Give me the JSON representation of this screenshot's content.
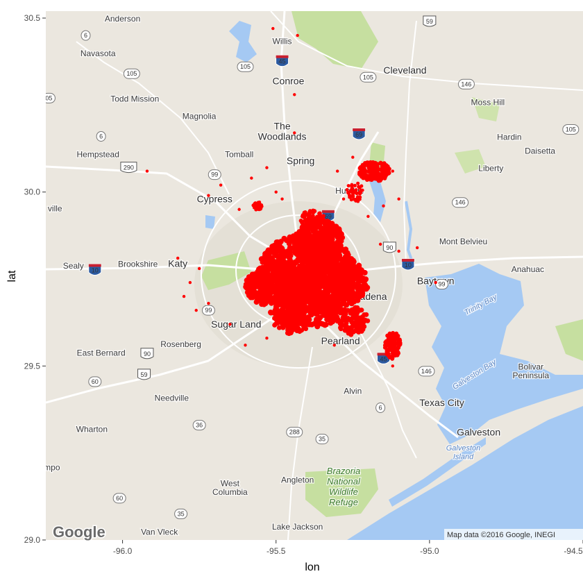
{
  "map": {
    "xlabel": "lon",
    "ylabel": "lat",
    "x_ticks": [
      {
        "value": -96.0,
        "label": "-96.0"
      },
      {
        "value": -95.5,
        "label": "-95.5"
      },
      {
        "value": -95.0,
        "label": "-95.0"
      },
      {
        "value": -94.5,
        "label": "-94.5"
      }
    ],
    "y_ticks": [
      {
        "value": 29.0,
        "label": "29.0"
      },
      {
        "value": 29.5,
        "label": "29.5"
      },
      {
        "value": 30.0,
        "label": "30.0"
      },
      {
        "value": 30.5,
        "label": "30.5"
      }
    ],
    "xlim": [
      -96.25,
      -94.5
    ],
    "ylim": [
      29.0,
      30.52
    ],
    "attribution": "Map data ©2016 Google, INEGI",
    "logo": "Google",
    "point_color": "#ff0000",
    "land_color": "#ebe7df",
    "water_color": "#a5c9f3",
    "park_color": "#c6dfa0",
    "places": [
      {
        "name": "Anderson",
        "lon": -96.0,
        "lat": 30.49,
        "style": "place"
      },
      {
        "name": "Willis",
        "lon": -95.48,
        "lat": 30.425,
        "style": "place"
      },
      {
        "name": "Navasota",
        "lon": -96.08,
        "lat": 30.39,
        "style": "place"
      },
      {
        "name": "Cleveland",
        "lon": -95.08,
        "lat": 30.34,
        "style": "place-big"
      },
      {
        "name": "Conroe",
        "lon": -95.46,
        "lat": 30.31,
        "style": "place-big"
      },
      {
        "name": "Todd Mission",
        "lon": -95.96,
        "lat": 30.26,
        "style": "place"
      },
      {
        "name": "Moss Hill",
        "lon": -94.81,
        "lat": 30.25,
        "style": "place"
      },
      {
        "name": "Magnolia",
        "lon": -95.75,
        "lat": 30.21,
        "style": "place"
      },
      {
        "name": "The",
        "lon": -95.48,
        "lat": 30.18,
        "style": "place-big"
      },
      {
        "name": "Woodlands",
        "lon": -95.48,
        "lat": 30.15,
        "style": "place-big"
      },
      {
        "name": "Hardin",
        "lon": -94.74,
        "lat": 30.15,
        "style": "place"
      },
      {
        "name": "Daisetta",
        "lon": -94.64,
        "lat": 30.11,
        "style": "place"
      },
      {
        "name": "Hempstead",
        "lon": -96.08,
        "lat": 30.1,
        "style": "place"
      },
      {
        "name": "Tomball",
        "lon": -95.62,
        "lat": 30.1,
        "style": "place"
      },
      {
        "name": "Spring",
        "lon": -95.42,
        "lat": 30.08,
        "style": "place-big"
      },
      {
        "name": "Liberty",
        "lon": -94.8,
        "lat": 30.06,
        "style": "place"
      },
      {
        "name": "Humble",
        "lon": -95.26,
        "lat": 29.995,
        "style": "place"
      },
      {
        "name": "Cypress",
        "lon": -95.7,
        "lat": 29.97,
        "style": "place-big"
      },
      {
        "name": "Mont Belvieu",
        "lon": -94.89,
        "lat": 29.85,
        "style": "place"
      },
      {
        "name": "Sealy",
        "lon": -96.16,
        "lat": 29.78,
        "style": "place"
      },
      {
        "name": "Brookshire",
        "lon": -95.95,
        "lat": 29.785,
        "style": "place"
      },
      {
        "name": "Katy",
        "lon": -95.82,
        "lat": 29.785,
        "style": "place-big"
      },
      {
        "name": "Anahuac",
        "lon": -94.68,
        "lat": 29.77,
        "style": "place"
      },
      {
        "name": "Baytown",
        "lon": -94.98,
        "lat": 29.735,
        "style": "place-big"
      },
      {
        "name": "Trinity Bay",
        "lon": -94.83,
        "lat": 29.67,
        "style": "place-water"
      },
      {
        "name": "Pasadena",
        "lon": -95.21,
        "lat": 29.69,
        "style": "place-big"
      },
      {
        "name": "Sugar Land",
        "lon": -95.63,
        "lat": 29.61,
        "style": "place-big"
      },
      {
        "name": "Rosenberg",
        "lon": -95.81,
        "lat": 29.555,
        "style": "place"
      },
      {
        "name": "Pearland",
        "lon": -95.29,
        "lat": 29.563,
        "style": "place-big"
      },
      {
        "name": "East Bernard",
        "lon": -96.07,
        "lat": 29.53,
        "style": "place"
      },
      {
        "name": "Galveston Bay",
        "lon": -94.85,
        "lat": 29.47,
        "style": "place-water"
      },
      {
        "name": "Bolivar",
        "lon": -94.67,
        "lat": 29.49,
        "style": "place"
      },
      {
        "name": "Peninsula",
        "lon": -94.67,
        "lat": 29.465,
        "style": "place"
      },
      {
        "name": "Alvin",
        "lon": -95.25,
        "lat": 29.42,
        "style": "place"
      },
      {
        "name": "Needville",
        "lon": -95.84,
        "lat": 29.4,
        "style": "place"
      },
      {
        "name": "Texas City",
        "lon": -94.96,
        "lat": 29.385,
        "style": "place-big"
      },
      {
        "name": "Wharton",
        "lon": -96.1,
        "lat": 29.31,
        "style": "place"
      },
      {
        "name": "Galveston",
        "lon": -94.84,
        "lat": 29.3,
        "style": "place-big"
      },
      {
        "name": "Galveston",
        "lon": -94.89,
        "lat": 29.257,
        "style": "place-water"
      },
      {
        "name": "Island",
        "lon": -94.89,
        "lat": 29.232,
        "style": "place-water"
      },
      {
        "name": "mpo",
        "lon": -96.23,
        "lat": 29.2,
        "style": "place"
      },
      {
        "name": "Brazoria",
        "lon": -95.28,
        "lat": 29.19,
        "style": "place-park"
      },
      {
        "name": "Angleton",
        "lon": -95.43,
        "lat": 29.165,
        "style": "place"
      },
      {
        "name": "National",
        "lon": -95.28,
        "lat": 29.16,
        "style": "place-park"
      },
      {
        "name": "West",
        "lon": -95.65,
        "lat": 29.155,
        "style": "place"
      },
      {
        "name": "Columbia",
        "lon": -95.65,
        "lat": 29.13,
        "style": "place"
      },
      {
        "name": "Wildlife",
        "lon": -95.28,
        "lat": 29.13,
        "style": "place-park"
      },
      {
        "name": "Refuge",
        "lon": -95.28,
        "lat": 29.1,
        "style": "place-park"
      },
      {
        "name": "Lake Jackson",
        "lon": -95.43,
        "lat": 29.03,
        "style": "place"
      },
      {
        "name": "Van Vleck",
        "lon": -95.88,
        "lat": 29.015,
        "style": "place"
      },
      {
        "name": "ville",
        "lon": -96.22,
        "lat": 29.945,
        "style": "place"
      }
    ],
    "shields": [
      {
        "label": "6",
        "lon": -96.12,
        "lat": 30.45,
        "shape": "oval"
      },
      {
        "label": "59",
        "lon": -95.0,
        "lat": 30.49,
        "shape": "us"
      },
      {
        "label": "45",
        "lon": -95.48,
        "lat": 30.375,
        "shape": "interstate"
      },
      {
        "label": "105",
        "lon": -95.97,
        "lat": 30.34,
        "shape": "oval"
      },
      {
        "label": "105",
        "lon": -95.6,
        "lat": 30.36,
        "shape": "oval"
      },
      {
        "label": "105",
        "lon": -95.2,
        "lat": 30.33,
        "shape": "oval"
      },
      {
        "label": "146",
        "lon": -94.88,
        "lat": 30.31,
        "shape": "oval"
      },
      {
        "label": "05",
        "lon": -96.24,
        "lat": 30.27,
        "shape": "oval"
      },
      {
        "label": "69",
        "lon": -95.23,
        "lat": 30.165,
        "shape": "interstate"
      },
      {
        "label": "6",
        "lon": -96.07,
        "lat": 30.16,
        "shape": "oval"
      },
      {
        "label": "105",
        "lon": -94.54,
        "lat": 30.18,
        "shape": "oval"
      },
      {
        "label": "290",
        "lon": -95.98,
        "lat": 30.07,
        "shape": "us"
      },
      {
        "label": "99",
        "lon": -95.7,
        "lat": 30.05,
        "shape": "oval"
      },
      {
        "label": "146",
        "lon": -94.9,
        "lat": 29.97,
        "shape": "oval"
      },
      {
        "label": "69",
        "lon": -95.33,
        "lat": 29.93,
        "shape": "interstate"
      },
      {
        "label": "90",
        "lon": -95.13,
        "lat": 29.84,
        "shape": "us"
      },
      {
        "label": "10",
        "lon": -96.09,
        "lat": 29.775,
        "shape": "interstate"
      },
      {
        "label": "10",
        "lon": -95.07,
        "lat": 29.79,
        "shape": "interstate"
      },
      {
        "label": "99",
        "lon": -94.96,
        "lat": 29.735,
        "shape": "oval"
      },
      {
        "label": "99",
        "lon": -95.72,
        "lat": 29.66,
        "shape": "oval"
      },
      {
        "label": "90",
        "lon": -95.92,
        "lat": 29.535,
        "shape": "us"
      },
      {
        "label": "45",
        "lon": -95.15,
        "lat": 29.52,
        "shape": "interstate"
      },
      {
        "label": "146",
        "lon": -95.01,
        "lat": 29.485,
        "shape": "oval"
      },
      {
        "label": "59",
        "lon": -95.93,
        "lat": 29.475,
        "shape": "us"
      },
      {
        "label": "60",
        "lon": -96.09,
        "lat": 29.455,
        "shape": "oval"
      },
      {
        "label": "6",
        "lon": -95.16,
        "lat": 29.38,
        "shape": "oval"
      },
      {
        "label": "36",
        "lon": -95.75,
        "lat": 29.33,
        "shape": "oval"
      },
      {
        "label": "288",
        "lon": -95.44,
        "lat": 29.31,
        "shape": "oval"
      },
      {
        "label": "35",
        "lon": -95.35,
        "lat": 29.29,
        "shape": "oval"
      },
      {
        "label": "60",
        "lon": -96.01,
        "lat": 29.12,
        "shape": "oval"
      },
      {
        "label": "35",
        "lon": -95.81,
        "lat": 29.075,
        "shape": "oval"
      }
    ]
  }
}
